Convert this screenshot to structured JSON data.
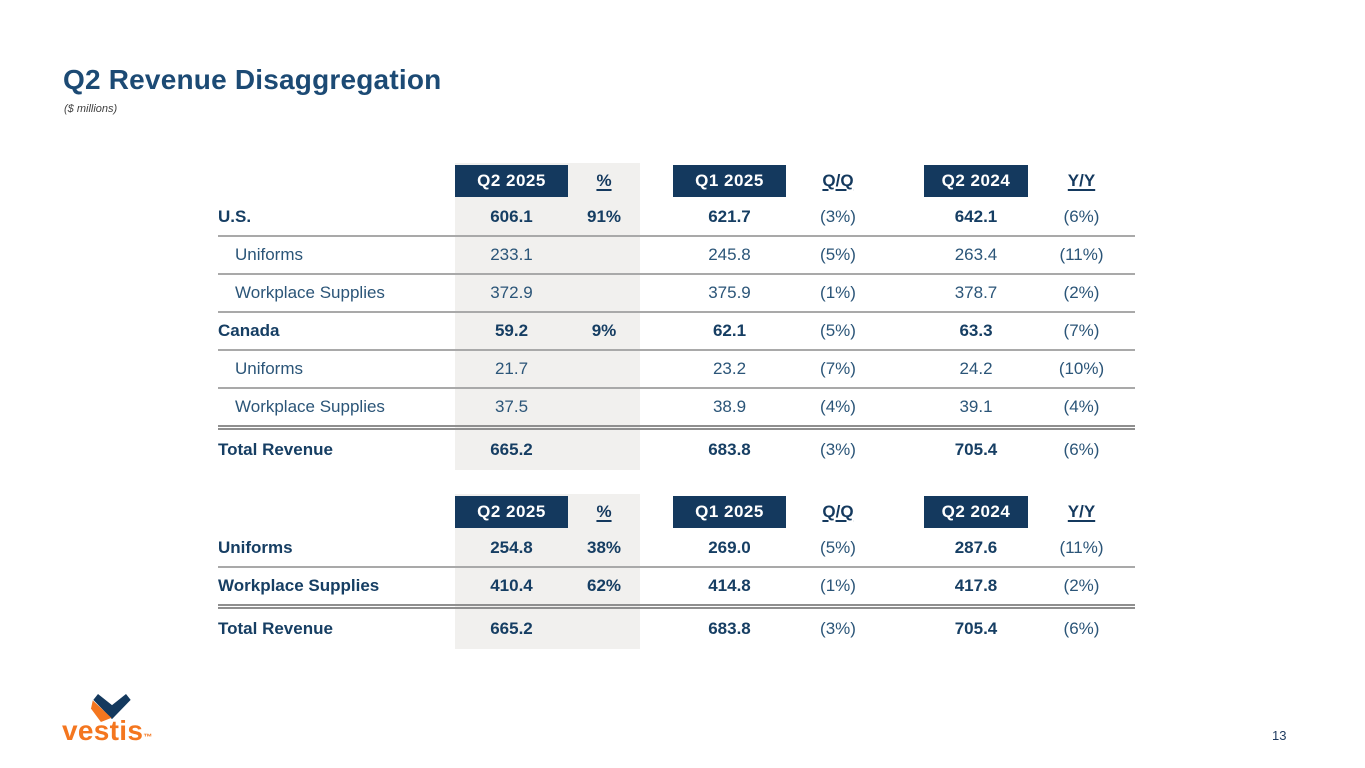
{
  "slide": {
    "title": "Q2 Revenue Disaggregation",
    "subtitle": "($ millions)",
    "page_number": "13"
  },
  "logo": {
    "brand": "vestis",
    "trademark": "™"
  },
  "colors": {
    "navy_box": "#14395e",
    "text_navy_bold": "#163e63",
    "text_navy": "#2b5578",
    "orange": "#f4761f",
    "band_gray": "#f1f0ee",
    "rule_gray": "#a9a9a9",
    "total_rule_gray": "#8f8f8f"
  },
  "tables": [
    {
      "name": "revenue-by-geography",
      "headers": [
        {
          "label": "Q2 2025",
          "style": "box"
        },
        {
          "label": "%",
          "style": "underline"
        },
        {
          "label": "Q1 2025",
          "style": "box"
        },
        {
          "label": "Q/Q",
          "style": "underline"
        },
        {
          "label": "Q2 2024",
          "style": "box"
        },
        {
          "label": "Y/Y",
          "style": "underline"
        }
      ],
      "rows": [
        {
          "label": "U.S.",
          "indent": false,
          "emphasis": true,
          "separator_below": true,
          "total": false,
          "values": [
            "606.1",
            "91%",
            "621.7",
            "(3%)",
            "642.1",
            "(6%)"
          ]
        },
        {
          "label": "Uniforms",
          "indent": true,
          "emphasis": false,
          "separator_below": true,
          "total": false,
          "values": [
            "233.1",
            "",
            "245.8",
            "(5%)",
            "263.4",
            "(11%)"
          ]
        },
        {
          "label": "Workplace Supplies",
          "indent": true,
          "emphasis": false,
          "separator_below": true,
          "total": false,
          "values": [
            "372.9",
            "",
            "375.9",
            "(1%)",
            "378.7",
            "(2%)"
          ]
        },
        {
          "label": "Canada",
          "indent": false,
          "emphasis": true,
          "separator_below": true,
          "total": false,
          "values": [
            "59.2",
            "9%",
            "62.1",
            "(5%)",
            "63.3",
            "(7%)"
          ]
        },
        {
          "label": "Uniforms",
          "indent": true,
          "emphasis": false,
          "separator_below": true,
          "total": false,
          "values": [
            "21.7",
            "",
            "23.2",
            "(7%)",
            "24.2",
            "(10%)"
          ]
        },
        {
          "label": "Workplace Supplies",
          "indent": true,
          "emphasis": false,
          "separator_below": false,
          "total": false,
          "values": [
            "37.5",
            "",
            "38.9",
            "(4%)",
            "39.1",
            "(4%)"
          ]
        },
        {
          "label": "Total Revenue",
          "indent": false,
          "emphasis": true,
          "separator_below": false,
          "total": true,
          "values": [
            "665.2",
            "",
            "683.8",
            "(3%)",
            "705.4",
            "(6%)"
          ]
        }
      ]
    },
    {
      "name": "revenue-by-segment",
      "headers": [
        {
          "label": "Q2 2025",
          "style": "box"
        },
        {
          "label": "%",
          "style": "underline"
        },
        {
          "label": "Q1 2025",
          "style": "box"
        },
        {
          "label": "Q/Q",
          "style": "underline"
        },
        {
          "label": "Q2 2024",
          "style": "box"
        },
        {
          "label": "Y/Y",
          "style": "underline"
        }
      ],
      "rows": [
        {
          "label": "Uniforms",
          "indent": false,
          "emphasis": true,
          "separator_below": true,
          "total": false,
          "values": [
            "254.8",
            "38%",
            "269.0",
            "(5%)",
            "287.6",
            "(11%)"
          ]
        },
        {
          "label": "Workplace Supplies",
          "indent": false,
          "emphasis": true,
          "separator_below": false,
          "total": false,
          "values": [
            "410.4",
            "62%",
            "414.8",
            "(1%)",
            "417.8",
            "(2%)"
          ]
        },
        {
          "label": "Total Revenue",
          "indent": false,
          "emphasis": true,
          "separator_below": false,
          "total": true,
          "values": [
            "665.2",
            "",
            "683.8",
            "(3%)",
            "705.4",
            "(6%)"
          ]
        }
      ]
    }
  ]
}
